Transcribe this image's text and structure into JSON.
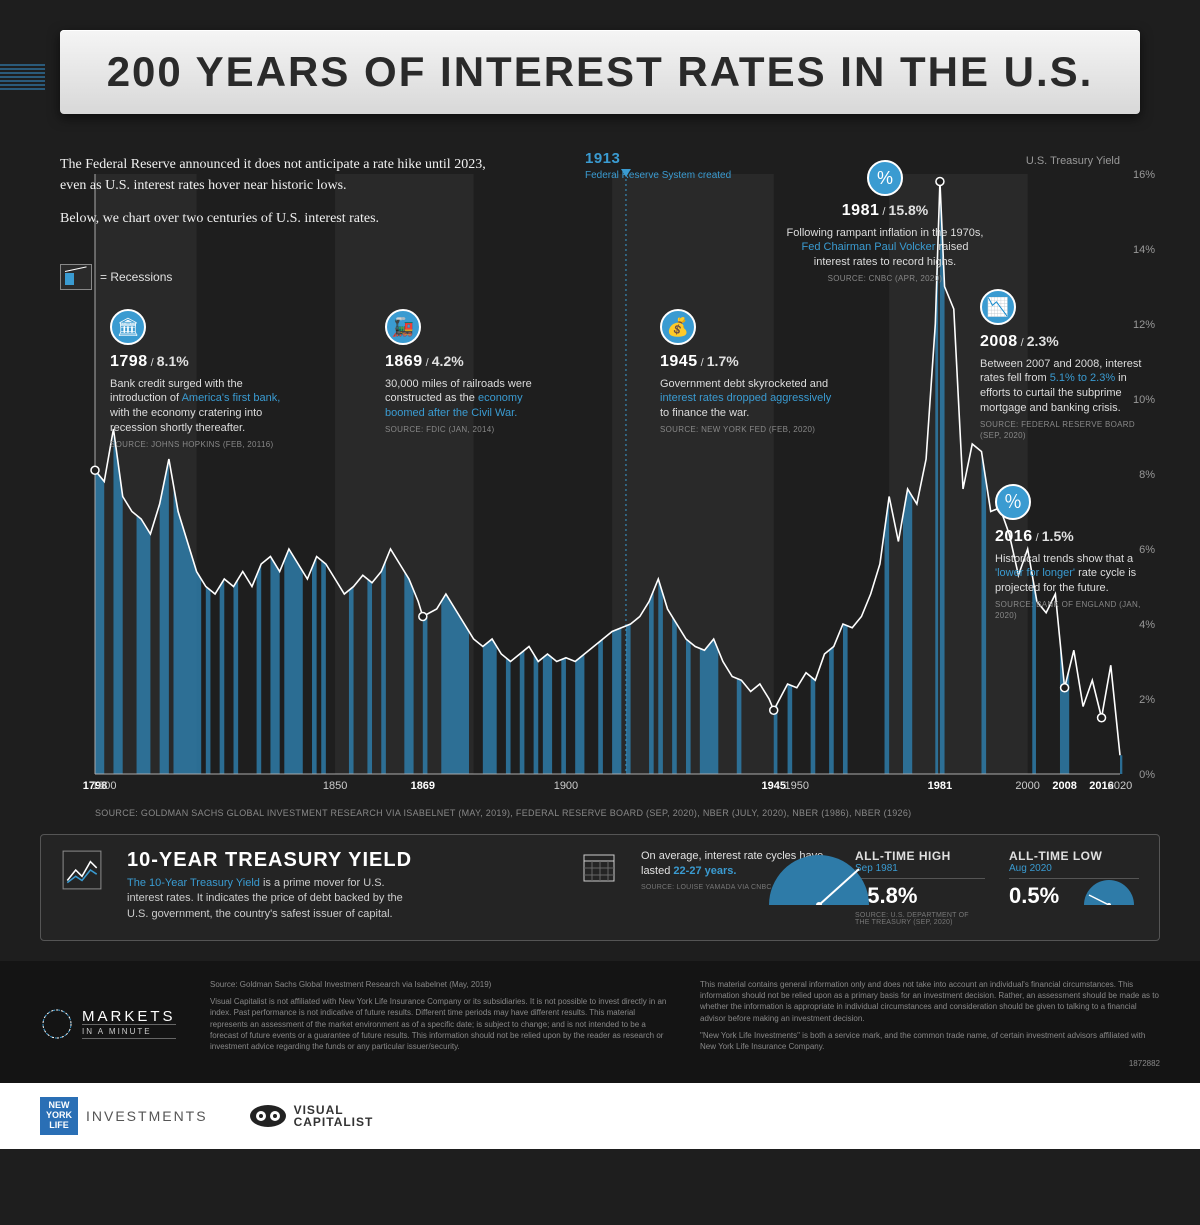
{
  "title": "200 YEARS OF INTEREST RATES IN THE U.S.",
  "intro": {
    "p1": "The Federal Reserve announced it does not anticipate a rate hike until 2023, even as U.S. interest rates hover near historic lows.",
    "p2": "Below, we chart over two centuries of U.S. interest rates."
  },
  "legend_recessions": "= Recessions",
  "chart": {
    "type": "line-with-bars",
    "x_range": [
      1798,
      2020
    ],
    "y_range": [
      0,
      16
    ],
    "y_tick_step": 2,
    "y_title": "U.S. Treasury Yield",
    "y_ticks": [
      "0%",
      "2%",
      "4%",
      "6%",
      "8%",
      "10%",
      "12%",
      "14%",
      "16%"
    ],
    "x_ticks": [
      {
        "v": 1798,
        "label": "1798",
        "bold": true
      },
      {
        "v": 1800,
        "label": "1800"
      },
      {
        "v": 1850,
        "label": "1850"
      },
      {
        "v": 1869,
        "label": "1869",
        "bold": true
      },
      {
        "v": 1900,
        "label": "1900"
      },
      {
        "v": 1945,
        "label": "1945",
        "bold": true
      },
      {
        "v": 1950,
        "label": "1950"
      },
      {
        "v": 1981,
        "label": "1981",
        "bold": true
      },
      {
        "v": 2000,
        "label": "2000"
      },
      {
        "v": 2008,
        "label": "2008",
        "bold": true
      },
      {
        "v": 2016,
        "label": "2016",
        "bold": true
      },
      {
        "v": 2020,
        "label": "2020"
      }
    ],
    "line_color": "#ffffff",
    "recession_color": "#2e7ba8",
    "background": "#1e1e1e",
    "shaded_bands": [
      [
        1798,
        1820
      ],
      [
        1850,
        1880
      ],
      [
        1910,
        1945
      ],
      [
        1970,
        2000
      ]
    ],
    "series": [
      [
        1798,
        8.1
      ],
      [
        1800,
        7.8
      ],
      [
        1802,
        9.2
      ],
      [
        1804,
        7.4
      ],
      [
        1806,
        7.0
      ],
      [
        1808,
        6.8
      ],
      [
        1810,
        6.4
      ],
      [
        1812,
        7.2
      ],
      [
        1814,
        8.4
      ],
      [
        1816,
        7.0
      ],
      [
        1818,
        6.2
      ],
      [
        1820,
        5.4
      ],
      [
        1822,
        5.0
      ],
      [
        1824,
        4.8
      ],
      [
        1826,
        5.2
      ],
      [
        1828,
        5.0
      ],
      [
        1830,
        5.4
      ],
      [
        1832,
        5.0
      ],
      [
        1834,
        5.6
      ],
      [
        1836,
        5.8
      ],
      [
        1838,
        5.4
      ],
      [
        1840,
        6.0
      ],
      [
        1842,
        5.6
      ],
      [
        1844,
        5.2
      ],
      [
        1846,
        5.8
      ],
      [
        1848,
        5.6
      ],
      [
        1850,
        5.2
      ],
      [
        1852,
        4.8
      ],
      [
        1854,
        5.0
      ],
      [
        1856,
        5.3
      ],
      [
        1858,
        5.1
      ],
      [
        1860,
        5.4
      ],
      [
        1862,
        6.0
      ],
      [
        1864,
        5.6
      ],
      [
        1866,
        5.2
      ],
      [
        1868,
        4.6
      ],
      [
        1869,
        4.2
      ],
      [
        1872,
        4.4
      ],
      [
        1874,
        4.8
      ],
      [
        1876,
        4.4
      ],
      [
        1878,
        4.0
      ],
      [
        1880,
        3.6
      ],
      [
        1882,
        3.4
      ],
      [
        1884,
        3.6
      ],
      [
        1886,
        3.2
      ],
      [
        1888,
        3.0
      ],
      [
        1890,
        3.2
      ],
      [
        1892,
        3.4
      ],
      [
        1894,
        3.0
      ],
      [
        1896,
        3.2
      ],
      [
        1898,
        3.0
      ],
      [
        1900,
        3.1
      ],
      [
        1902,
        3.0
      ],
      [
        1904,
        3.2
      ],
      [
        1906,
        3.4
      ],
      [
        1908,
        3.6
      ],
      [
        1910,
        3.8
      ],
      [
        1912,
        3.9
      ],
      [
        1914,
        4.0
      ],
      [
        1916,
        4.2
      ],
      [
        1918,
        4.6
      ],
      [
        1920,
        5.2
      ],
      [
        1922,
        4.4
      ],
      [
        1924,
        4.0
      ],
      [
        1926,
        3.6
      ],
      [
        1928,
        3.4
      ],
      [
        1930,
        3.3
      ],
      [
        1932,
        3.6
      ],
      [
        1934,
        3.0
      ],
      [
        1936,
        2.6
      ],
      [
        1938,
        2.5
      ],
      [
        1940,
        2.2
      ],
      [
        1942,
        2.4
      ],
      [
        1944,
        2.0
      ],
      [
        1945,
        1.7
      ],
      [
        1948,
        2.4
      ],
      [
        1950,
        2.3
      ],
      [
        1952,
        2.7
      ],
      [
        1954,
        2.5
      ],
      [
        1956,
        3.2
      ],
      [
        1958,
        3.4
      ],
      [
        1960,
        4.0
      ],
      [
        1962,
        3.9
      ],
      [
        1964,
        4.2
      ],
      [
        1966,
        4.8
      ],
      [
        1968,
        5.6
      ],
      [
        1970,
        7.4
      ],
      [
        1972,
        6.2
      ],
      [
        1974,
        7.6
      ],
      [
        1976,
        7.2
      ],
      [
        1978,
        8.4
      ],
      [
        1980,
        12.0
      ],
      [
        1981,
        15.8
      ],
      [
        1982,
        13.0
      ],
      [
        1984,
        12.4
      ],
      [
        1986,
        7.6
      ],
      [
        1988,
        8.8
      ],
      [
        1990,
        8.6
      ],
      [
        1992,
        7.0
      ],
      [
        1994,
        7.1
      ],
      [
        1996,
        6.4
      ],
      [
        1998,
        5.3
      ],
      [
        2000,
        6.0
      ],
      [
        2002,
        4.6
      ],
      [
        2004,
        4.3
      ],
      [
        2006,
        4.8
      ],
      [
        2008,
        2.3
      ],
      [
        2010,
        3.3
      ],
      [
        2012,
        1.8
      ],
      [
        2014,
        2.5
      ],
      [
        2016,
        1.5
      ],
      [
        2018,
        2.9
      ],
      [
        2020,
        0.5
      ]
    ],
    "recessions": [
      [
        1798,
        1800
      ],
      [
        1802,
        1804
      ],
      [
        1807,
        1810
      ],
      [
        1812,
        1814
      ],
      [
        1815,
        1821
      ],
      [
        1822,
        1823
      ],
      [
        1825,
        1826
      ],
      [
        1828,
        1829
      ],
      [
        1833,
        1834
      ],
      [
        1836,
        1838
      ],
      [
        1839,
        1843
      ],
      [
        1845,
        1846
      ],
      [
        1847,
        1848
      ],
      [
        1853,
        1854
      ],
      [
        1857,
        1858
      ],
      [
        1860,
        1861
      ],
      [
        1865,
        1867
      ],
      [
        1869,
        1870
      ],
      [
        1873,
        1879
      ],
      [
        1882,
        1885
      ],
      [
        1887,
        1888
      ],
      [
        1890,
        1891
      ],
      [
        1893,
        1894
      ],
      [
        1895,
        1897
      ],
      [
        1899,
        1900
      ],
      [
        1902,
        1904
      ],
      [
        1907,
        1908
      ],
      [
        1910,
        1912
      ],
      [
        1913,
        1914
      ],
      [
        1918,
        1919
      ],
      [
        1920,
        1921
      ],
      [
        1923,
        1924
      ],
      [
        1926,
        1927
      ],
      [
        1929,
        1933
      ],
      [
        1937,
        1938
      ],
      [
        1945,
        1945.8
      ],
      [
        1948,
        1949
      ],
      [
        1953,
        1954
      ],
      [
        1957,
        1958
      ],
      [
        1960,
        1961
      ],
      [
        1969,
        1970
      ],
      [
        1973,
        1975
      ],
      [
        1980,
        1980.6
      ],
      [
        1981,
        1982
      ],
      [
        1990,
        1991
      ],
      [
        2001,
        2001.8
      ],
      [
        2007,
        2009
      ],
      [
        2020,
        2020.5
      ]
    ],
    "marker_1913": 1913,
    "source": "SOURCE: GOLDMAN SACHS GLOBAL INVESTMENT RESEARCH VIA ISABELNET (MAY, 2019), FEDERAL RESERVE BOARD (SEP, 2020), NBER (JULY, 2020), NBER (1986), NBER (1926)"
  },
  "annotations": {
    "a1798": {
      "year": "1798",
      "pct": "8.1%",
      "icon": "🏛",
      "desc_pre": "Bank credit surged with the introduction of ",
      "desc_hl": "America's first bank,",
      "desc_post": " with the economy cratering into recession shortly thereafter.",
      "src": "SOURCE: JOHNS HOPKINS (FEB, 20116)"
    },
    "a1869": {
      "year": "1869",
      "pct": "4.2%",
      "icon": "🚂",
      "desc_pre": "30,000 miles of railroads were constructed as the ",
      "desc_hl": "economy boomed after the Civil War.",
      "desc_post": "",
      "src": "SOURCE: FDIC (JAN, 2014)"
    },
    "a1913": {
      "year": "1913",
      "sub": "Federal Reserve System created"
    },
    "a1945": {
      "year": "1945",
      "pct": "1.7%",
      "icon": "💰",
      "desc_pre": "Government debt skyrocketed and ",
      "desc_hl": "interest rates dropped aggressively",
      "desc_post": " to finance the war.",
      "src": "SOURCE: NEW YORK FED  (FEB, 2020)"
    },
    "a1981": {
      "year": "1981",
      "pct": "15.8%",
      "icon": "%",
      "desc_pre": "Following rampant inflation in the 1970s, ",
      "desc_hl": "Fed Chairman Paul Volcker",
      "desc_post": " raised interest rates to record highs.",
      "src": "SOURCE: CNBC (APR, 2020)"
    },
    "a2008": {
      "year": "2008",
      "pct": "2.3%",
      "icon": "📉",
      "desc_pre": "Between 2007 and 2008, interest rates fell from ",
      "desc_hl": "5.1% to 2.3%",
      "desc_post": " in efforts to curtail the subprime mortgage and banking crisis.",
      "src": "SOURCE: FEDERAL RESERVE BOARD (SEP, 2020)"
    },
    "a2016": {
      "year": "2016",
      "pct": "1.5%",
      "icon": "％",
      "desc_pre": "Historical trends show that a ",
      "desc_hl": "'lower for longer'",
      "desc_post": " rate cycle is projected for the future.",
      "src": "SOURCE: BANK OF ENGLAND (JAN, 2020)"
    }
  },
  "treasury": {
    "title": "10-YEAR TREASURY YIELD",
    "desc_hl": "The 10-Year Treasury Yield",
    "desc_rest": " is a prime mover for U.S. interest rates. It indicates the price of debt backed by the U.S. government, the country's safest issuer of capital.",
    "cycle_pre": "On average, interest rate cycles have lasted ",
    "cycle_hl": "22-27 years.",
    "cycle_src": "SOURCE: LOUISE YAMADA VIA CNBC (NOV, 2016)",
    "high_label": "ALL-TIME HIGH",
    "high_date": "Sep 1981",
    "high_val": "15.8%",
    "low_label": "ALL-TIME LOW",
    "low_date": "Aug 2020",
    "low_val": "0.5%",
    "stats_src": "SOURCE:  U.S. DEPARTMENT OF THE TREASURY (SEP, 2020)"
  },
  "footer": {
    "markets": "MARKETS",
    "markets_sub": "IN A MINUTE",
    "src_line": "Source: Goldman Sachs Global Investment Research via Isabelnet (May, 2019)",
    "d1": "Visual Capitalist is not affiliated with New York Life Insurance Company or its subsidiaries. It is not possible to invest directly in an index. Past performance is not indicative of future results. Different time periods may have different results. This material represents an assessment of the market environment as of a specific date; is subject to change; and is not intended to be a forecast of future events or a guarantee of future results. This information should not be relied upon by the reader as research or investment advice regarding the funds or any particular issuer/security.",
    "d2": "This material contains general information only and does not take into account an individual's financial circumstances. This information should not be relied upon as a primary basis for an investment decision. Rather, an assessment should be made as to whether the information is appropriate in individual circumstances and consideration should be given to talking to a financial advisor before making an investment decision.",
    "d3": "\"New York Life Investments\" is both a service mark, and the common trade name, of certain investment advisors affiliated with New York Life Insurance Company.",
    "code": "1872882"
  },
  "sponsors": {
    "ny_sq": "NEW YORK LIFE",
    "ny_text": "INVESTMENTS",
    "vc1": "VISUAL",
    "vc2": "CAPITALIST"
  }
}
